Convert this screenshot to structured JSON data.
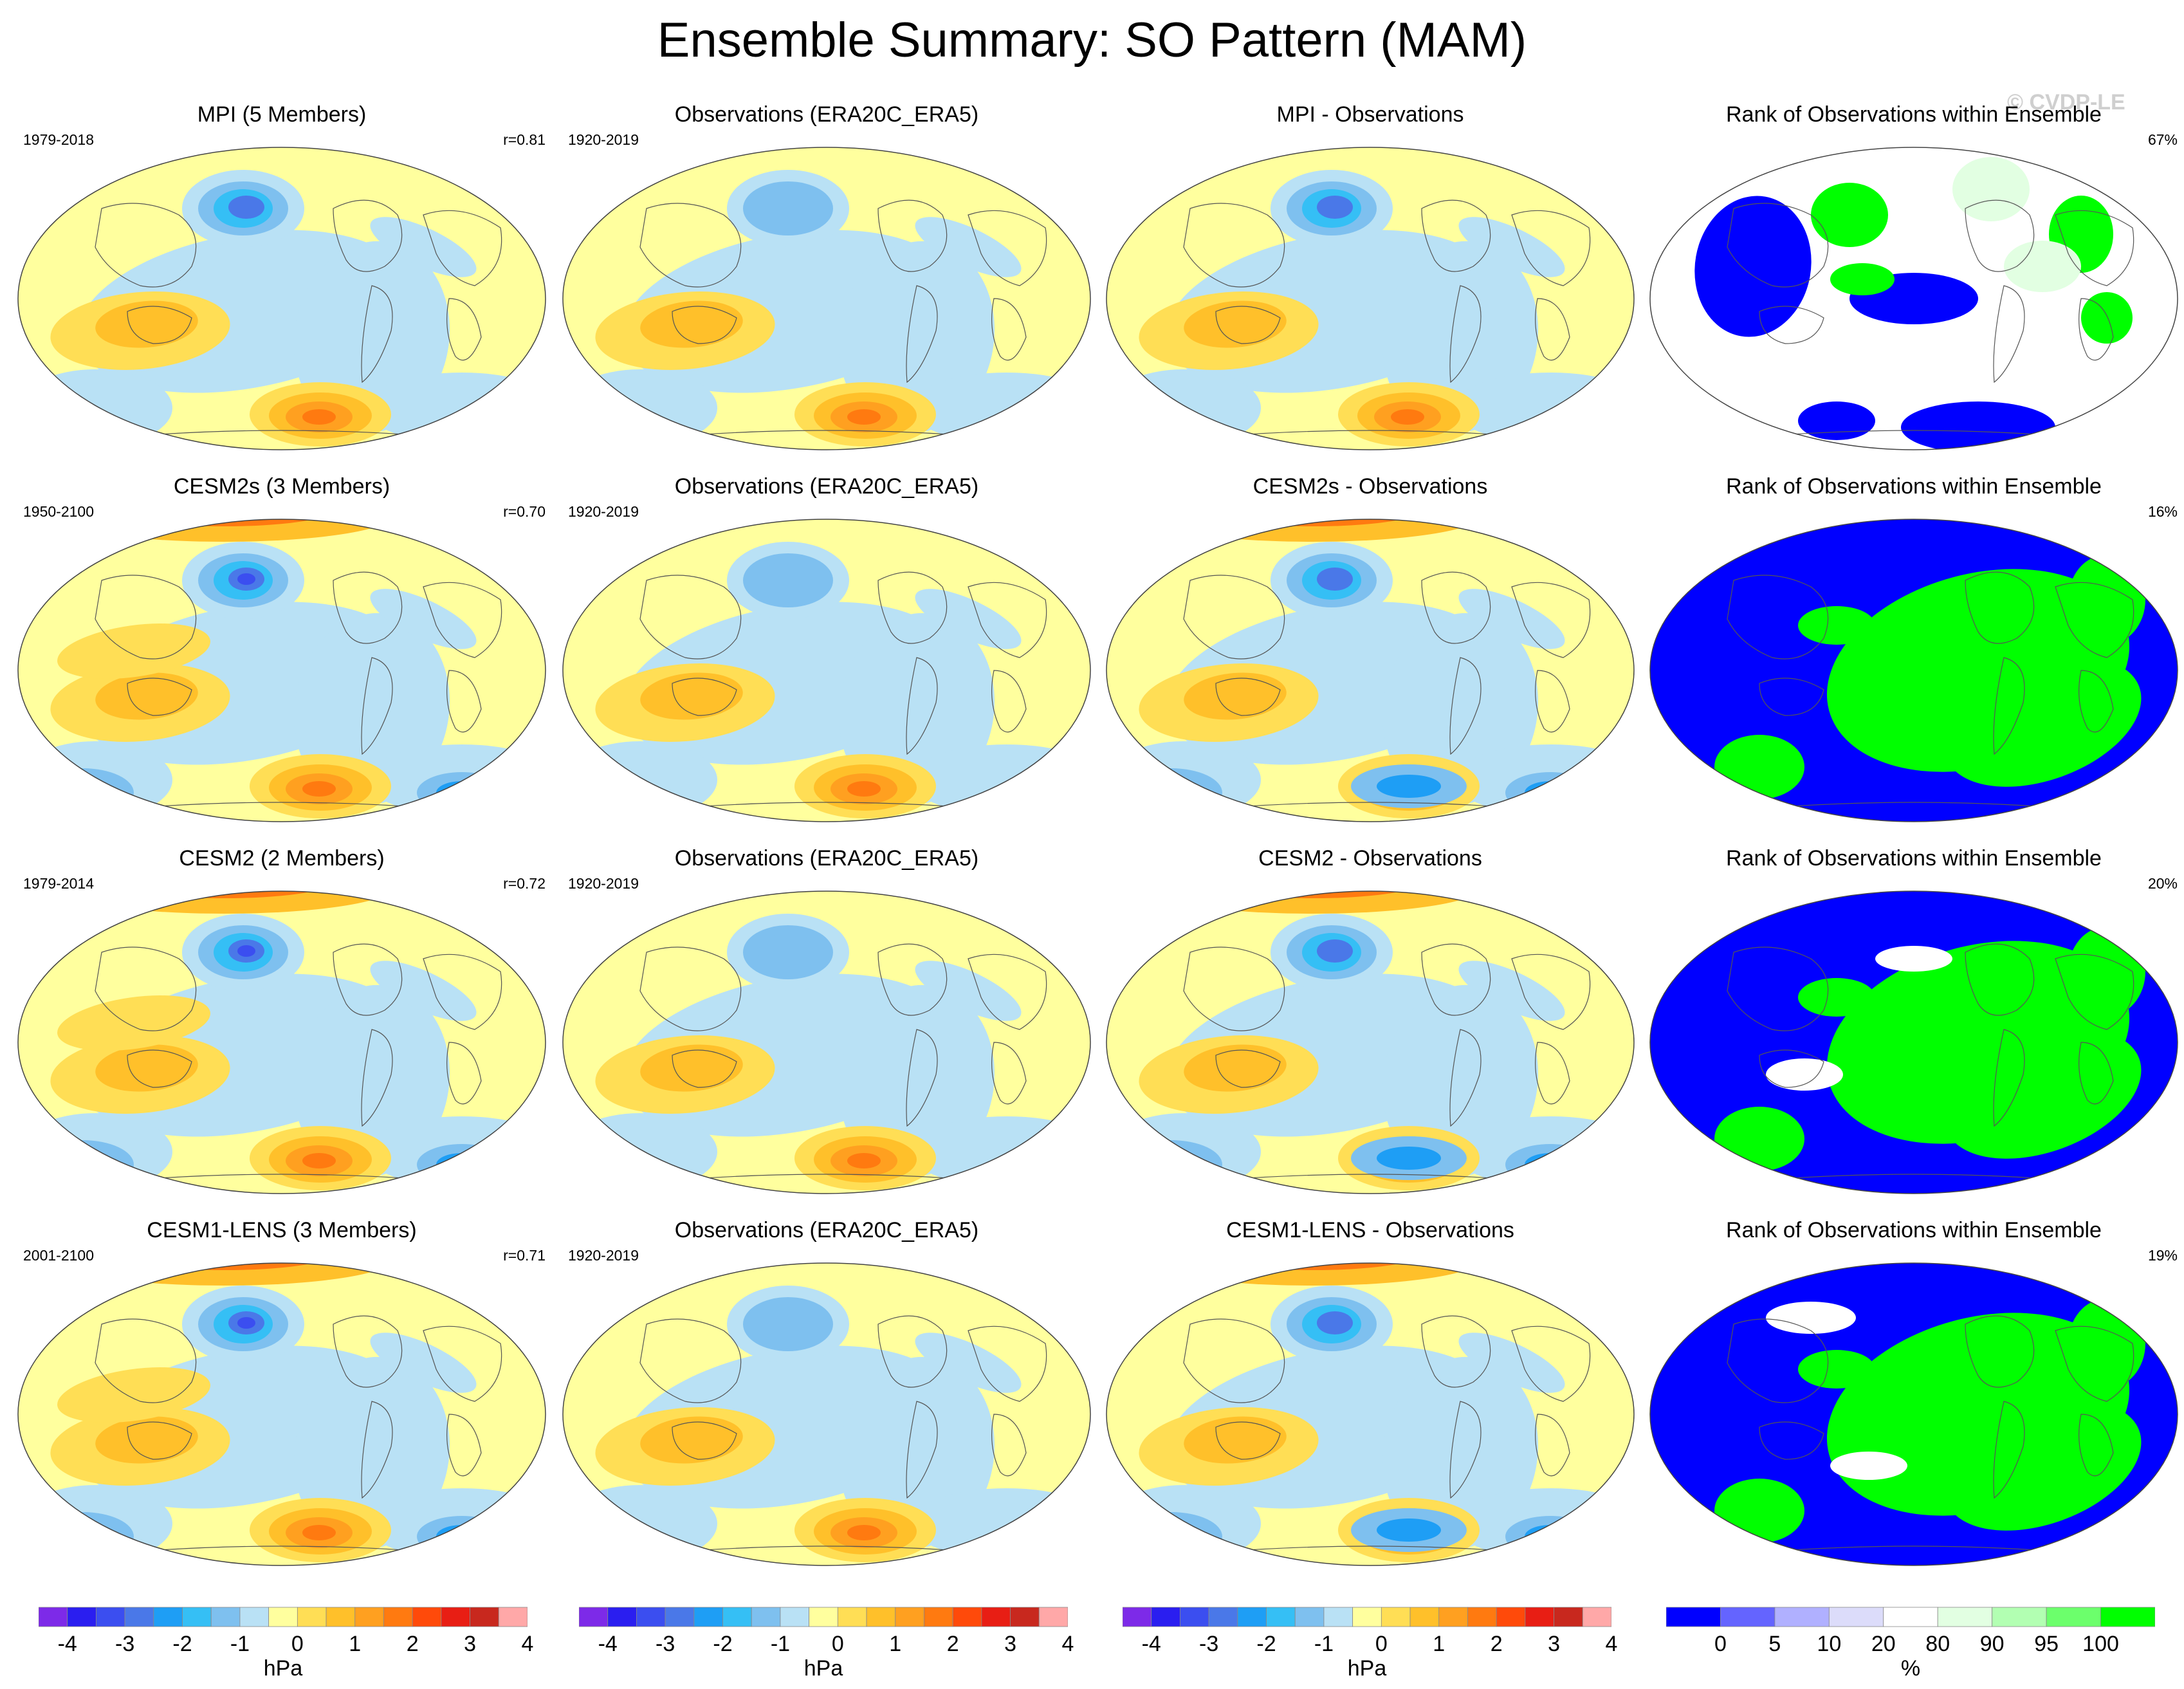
{
  "title": "Ensemble Summary: SO Pattern (MAM)",
  "watermark": "© CVDP-LE",
  "rows": [
    {
      "model": {
        "title": "MPI (5 Members)",
        "years": "1979-2018",
        "corr": "r=0.81",
        "variant": 0
      },
      "obs": {
        "title": "Observations (ERA20C_ERA5)",
        "years": "1920-2019"
      },
      "diff": {
        "title": "MPI - Observations",
        "variant": 0
      },
      "rank": {
        "title": "Rank of Observations within Ensemble",
        "percent": "67%",
        "variant": 0
      }
    },
    {
      "model": {
        "title": "CESM2s (3 Members)",
        "years": "1950-2100",
        "corr": "r=0.70",
        "variant": 1
      },
      "obs": {
        "title": "Observations (ERA20C_ERA5)",
        "years": "1920-2019"
      },
      "diff": {
        "title": "CESM2s - Observations",
        "variant": 1
      },
      "rank": {
        "title": "Rank of Observations within Ensemble",
        "percent": "16%",
        "variant": 1
      }
    },
    {
      "model": {
        "title": "CESM2 (2 Members)",
        "years": "1979-2014",
        "corr": "r=0.72",
        "variant": 2
      },
      "obs": {
        "title": "Observations (ERA20C_ERA5)",
        "years": "1920-2019"
      },
      "diff": {
        "title": "CESM2 - Observations",
        "variant": 2
      },
      "rank": {
        "title": "Rank of Observations within Ensemble",
        "percent": "20%",
        "variant": 2
      }
    },
    {
      "model": {
        "title": "CESM1-LENS (3 Members)",
        "years": "2001-2100",
        "corr": "r=0.71",
        "variant": 3
      },
      "obs": {
        "title": "Observations (ERA20C_ERA5)",
        "years": "1920-2019"
      },
      "diff": {
        "title": "CESM1-LENS - Observations",
        "variant": 3
      },
      "rank": {
        "title": "Rank of Observations within Ensemble",
        "percent": "19%",
        "variant": 3
      }
    }
  ],
  "colorbar_hpa": {
    "unit": "hPa",
    "colors": [
      "#7d2ae8",
      "#2a1ef0",
      "#3b4ef0",
      "#4a78e8",
      "#1e9ef5",
      "#35bff5",
      "#7ec0ef",
      "#b9e1f5",
      "#ffff9e",
      "#ffde55",
      "#ffc02a",
      "#ffa020",
      "#ff7a10",
      "#ff4a0a",
      "#e81e14",
      "#c8281e",
      "#ffa8a8"
    ],
    "labels": [
      "-4",
      "-3",
      "-2",
      "-1",
      "0",
      "1",
      "2",
      "3",
      "4"
    ],
    "label_boundaries": [
      1,
      3,
      5,
      7,
      9,
      11,
      13,
      15,
      17
    ]
  },
  "colorbar_rank": {
    "unit": "%",
    "colors": [
      "#0000ff",
      "#6464ff",
      "#b0b0ff",
      "#dcdcfa",
      "#ffffff",
      "#e2ffe2",
      "#b2ffb2",
      "#6cff6c",
      "#00ff00"
    ],
    "labels": [
      "0",
      "5",
      "10",
      "20",
      "80",
      "90",
      "95",
      "100"
    ],
    "label_boundaries": [
      1,
      2,
      3,
      4,
      5,
      6,
      7,
      8
    ]
  }
}
